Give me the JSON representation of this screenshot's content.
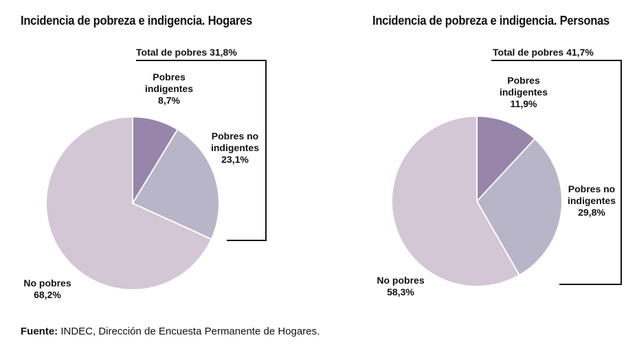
{
  "colors": {
    "no_pobres": "#d3c6d5",
    "pobres_indigentes": "#9785aa",
    "pobres_no_indigentes": "#b8b5c9",
    "slice_edge": "#ffffff",
    "bracket": "#111111"
  },
  "chart_data": [
    {
      "type": "pie",
      "title": "Incidencia de pobreza e indigencia. Hogares",
      "total_label": "Total de pobres 31,8%",
      "slices": [
        {
          "name": "Pobres indigentes",
          "value": 8.7,
          "label_lines": [
            "Pobres",
            "indigentes",
            "8,7%"
          ]
        },
        {
          "name": "Pobres no indigentes",
          "value": 23.1,
          "label_lines": [
            "Pobres no",
            "indigentes",
            "23,1%"
          ]
        },
        {
          "name": "No pobres",
          "value": 68.2,
          "label_lines": [
            "No pobres",
            "68,2%"
          ]
        }
      ]
    },
    {
      "type": "pie",
      "title": "Incidencia de pobreza e indigencia. Personas",
      "total_label": "Total de pobres 41,7%",
      "slices": [
        {
          "name": "Pobres indigentes",
          "value": 11.9,
          "label_lines": [
            "Pobres",
            "indigentes",
            "11,9%"
          ]
        },
        {
          "name": "Pobres no indigentes",
          "value": 29.8,
          "label_lines": [
            "Pobres no",
            "indigentes",
            "29,8%"
          ]
        },
        {
          "name": "No pobres",
          "value": 58.3,
          "label_lines": [
            "No pobres",
            "58,3%"
          ]
        }
      ]
    }
  ],
  "footer": {
    "label": "Fuente:",
    "text": "INDEC, Dirección de Encuesta Permanente de Hogares."
  }
}
